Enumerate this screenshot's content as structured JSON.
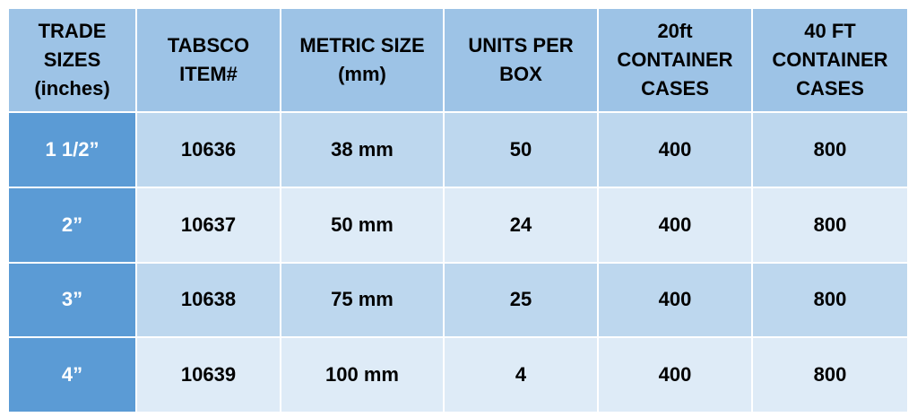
{
  "table": {
    "headers": [
      [
        "TRADE",
        "SIZES",
        "(inches)"
      ],
      [
        "TABSCO",
        "ITEM#"
      ],
      [
        "METRIC SIZE",
        "(mm)"
      ],
      [
        "UNITS PER",
        "BOX"
      ],
      [
        "20ft",
        "CONTAINER",
        "CASES"
      ],
      [
        "40 FT",
        "CONTAINER",
        "CASES"
      ]
    ],
    "rows": [
      [
        "1 1/2”",
        "10636",
        "38 mm",
        "50",
        "400",
        "800"
      ],
      [
        "2”",
        "10637",
        "50 mm",
        "24",
        "400",
        "800"
      ],
      [
        "3”",
        "10638",
        "75 mm",
        "25",
        "400",
        "800"
      ],
      [
        "4”",
        "10639",
        "100 mm",
        "4",
        "400",
        "800"
      ]
    ]
  },
  "colors": {
    "header_bg": "#9dc3e6",
    "size_column_bg": "#5b9bd5",
    "row_dark_bg": "#bdd7ee",
    "row_light_bg": "#deebf7"
  }
}
